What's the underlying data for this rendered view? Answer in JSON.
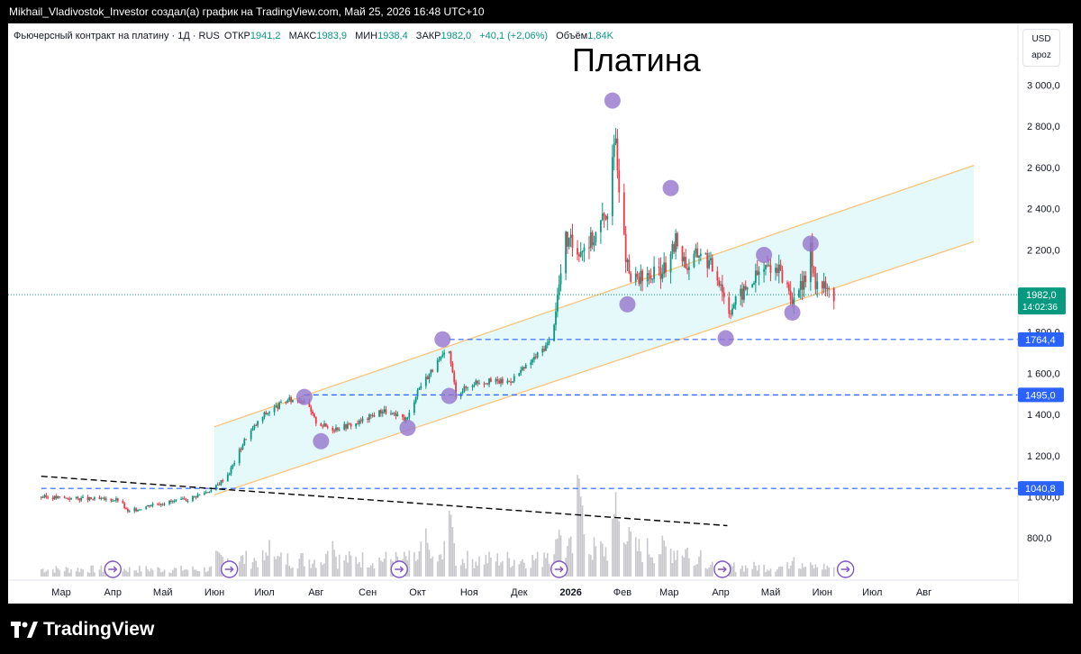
{
  "header": {
    "attribution": "Mikhail_Vladivostok_Investor создал(а) график на TradingView.com, Май 25, 2026 16:48 UTC+10"
  },
  "legend": {
    "instrument": "Фьючерсный контракт на платину · 1Д · RUS",
    "open_label": "ОТКР",
    "open_value": "1941,2",
    "high_label": "МАКС",
    "high_value": "1983,9",
    "low_label": "МИН",
    "low_value": "1938,4",
    "close_label": "ЗАКР",
    "close_value": "1982,0",
    "change": "+40,1 (+2,06%)",
    "volume_label": "Объём",
    "volume_value": "1,84K"
  },
  "title": "Платина",
  "currency": {
    "code": "USD",
    "mode": "apoz"
  },
  "price_tag": {
    "price": "1982,0",
    "countdown": "14:02:36",
    "color": "#089981"
  },
  "levels": [
    {
      "label": "1764,4",
      "value": 1764.4
    },
    {
      "label": "1495,0",
      "value": 1495.0
    },
    {
      "label": "1040,8",
      "value": 1040.8
    }
  ],
  "brand": {
    "name": "TradingView"
  },
  "colors": {
    "up": "#089981",
    "down": "#f23645",
    "channel": "#f7c57b",
    "level": "#2962ff",
    "marker": "#9575cd"
  },
  "chart_data": {
    "type": "candlestick",
    "title": "Платина",
    "y_axis": {
      "ticks": [
        800,
        1000,
        1200,
        1400,
        1600,
        1800,
        2000,
        2200,
        2400,
        2600,
        2800,
        3000
      ],
      "tick_labels": [
        "800,0",
        "1 000,0",
        "1 200,0",
        "1 400,0",
        "1 600,0",
        "1 800,0",
        "2 000,0",
        "2 200,0",
        "2 400,0",
        "2 600,0",
        "2 800,0",
        "3 000,0"
      ],
      "ylim": [
        640,
        3080
      ]
    },
    "x_axis": {
      "labels": [
        "Мар",
        "Апр",
        "Май",
        "Июн",
        "Июл",
        "Авг",
        "Сен",
        "Окт",
        "Ноя",
        "Дек",
        "2026",
        "Фев",
        "Мар",
        "Апр",
        "Май",
        "Июн",
        "Июл",
        "Авг"
      ],
      "range": [
        "2025-02-17",
        "2026-08-31"
      ]
    },
    "series": [
      {
        "name": "price",
        "points": [
          [
            "2025-02-17",
            1000
          ],
          [
            "2025-03-15",
            990
          ],
          [
            "2025-04-05",
            985
          ],
          [
            "2025-04-10",
            925
          ],
          [
            "2025-04-25",
            965
          ],
          [
            "2025-05-15",
            985
          ],
          [
            "2025-06-01",
            1040
          ],
          [
            "2025-06-10",
            1120
          ],
          [
            "2025-06-20",
            1290
          ],
          [
            "2025-07-01",
            1400
          ],
          [
            "2025-07-15",
            1470
          ],
          [
            "2025-07-25",
            1470
          ],
          [
            "2025-08-01",
            1365
          ],
          [
            "2025-08-10",
            1330
          ],
          [
            "2025-08-25",
            1355
          ],
          [
            "2025-09-10",
            1420
          ],
          [
            "2025-09-20",
            1385
          ],
          [
            "2025-09-25",
            1380
          ],
          [
            "2025-10-01",
            1520
          ],
          [
            "2025-10-10",
            1620
          ],
          [
            "2025-10-16",
            1680
          ],
          [
            "2025-10-20",
            1700
          ],
          [
            "2025-10-24",
            1500
          ],
          [
            "2025-11-05",
            1560
          ],
          [
            "2025-11-25",
            1560
          ],
          [
            "2025-12-05",
            1630
          ],
          [
            "2025-12-20",
            1760
          ],
          [
            "2025-12-29",
            2250
          ],
          [
            "2026-01-05",
            2200
          ],
          [
            "2026-01-15",
            2260
          ],
          [
            "2026-01-23",
            2400
          ],
          [
            "2026-01-28",
            2750
          ],
          [
            "2026-02-01",
            2300
          ],
          [
            "2026-02-05",
            2050
          ],
          [
            "2026-02-15",
            2060
          ],
          [
            "2026-03-01",
            2120
          ],
          [
            "2026-03-05",
            2250
          ],
          [
            "2026-03-12",
            2120
          ],
          [
            "2026-03-20",
            2200
          ],
          [
            "2026-04-01",
            2050
          ],
          [
            "2026-04-05",
            1900
          ],
          [
            "2026-04-15",
            2000
          ],
          [
            "2026-04-25",
            2100
          ],
          [
            "2026-05-02",
            2130
          ],
          [
            "2026-05-10",
            2050
          ],
          [
            "2026-05-15",
            1940
          ],
          [
            "2026-05-22",
            2060
          ],
          [
            "2026-05-25",
            2200
          ],
          [
            "2026-05-28",
            2050
          ],
          [
            "2026-06-08",
            1982
          ]
        ]
      }
    ],
    "volume_peaks": [
      [
        "2025-07-05",
        0.35
      ],
      [
        "2025-08-10",
        0.45
      ],
      [
        "2025-10-05",
        0.5
      ],
      [
        "2025-10-20",
        0.68
      ],
      [
        "2025-12-25",
        0.45
      ],
      [
        "2026-01-06",
        1.0
      ],
      [
        "2026-01-28",
        0.72
      ],
      [
        "2026-02-05",
        0.45
      ],
      [
        "2026-03-20",
        0.22
      ],
      [
        "2026-05-15",
        0.18
      ]
    ],
    "channel": {
      "upper": [
        [
          "2025-06-01",
          1340
        ],
        [
          "2026-08-31",
          2610
        ]
      ],
      "lower": [
        [
          "2025-06-01",
          1010
        ],
        [
          "2026-08-31",
          2240
        ]
      ]
    },
    "downtrend": [
      [
        "2025-02-17",
        1100
      ],
      [
        "2026-04-05",
        860
      ]
    ],
    "horizontal_levels": [
      {
        "value": 1764.4,
        "from": "2025-10-20"
      },
      {
        "value": 1495.0,
        "from": "2025-07-25"
      },
      {
        "value": 1040.8,
        "from": "2025-02-17"
      }
    ],
    "markers": [
      [
        "2025-07-25",
        1485
      ],
      [
        "2025-08-04",
        1270
      ],
      [
        "2025-09-25",
        1335
      ],
      [
        "2025-10-16",
        1765
      ],
      [
        "2025-10-20",
        1490
      ],
      [
        "2026-01-26",
        2925
      ],
      [
        "2026-02-04",
        1935
      ],
      [
        "2026-03-02",
        2500
      ],
      [
        "2026-04-04",
        1770
      ],
      [
        "2026-04-27",
        2175
      ],
      [
        "2026-05-14",
        1895
      ],
      [
        "2026-05-25",
        2230
      ]
    ],
    "event_markers": [
      "2025-04-01",
      "2025-06-10",
      "2025-09-20",
      "2025-12-25",
      "2026-04-02",
      "2026-06-15"
    ]
  }
}
